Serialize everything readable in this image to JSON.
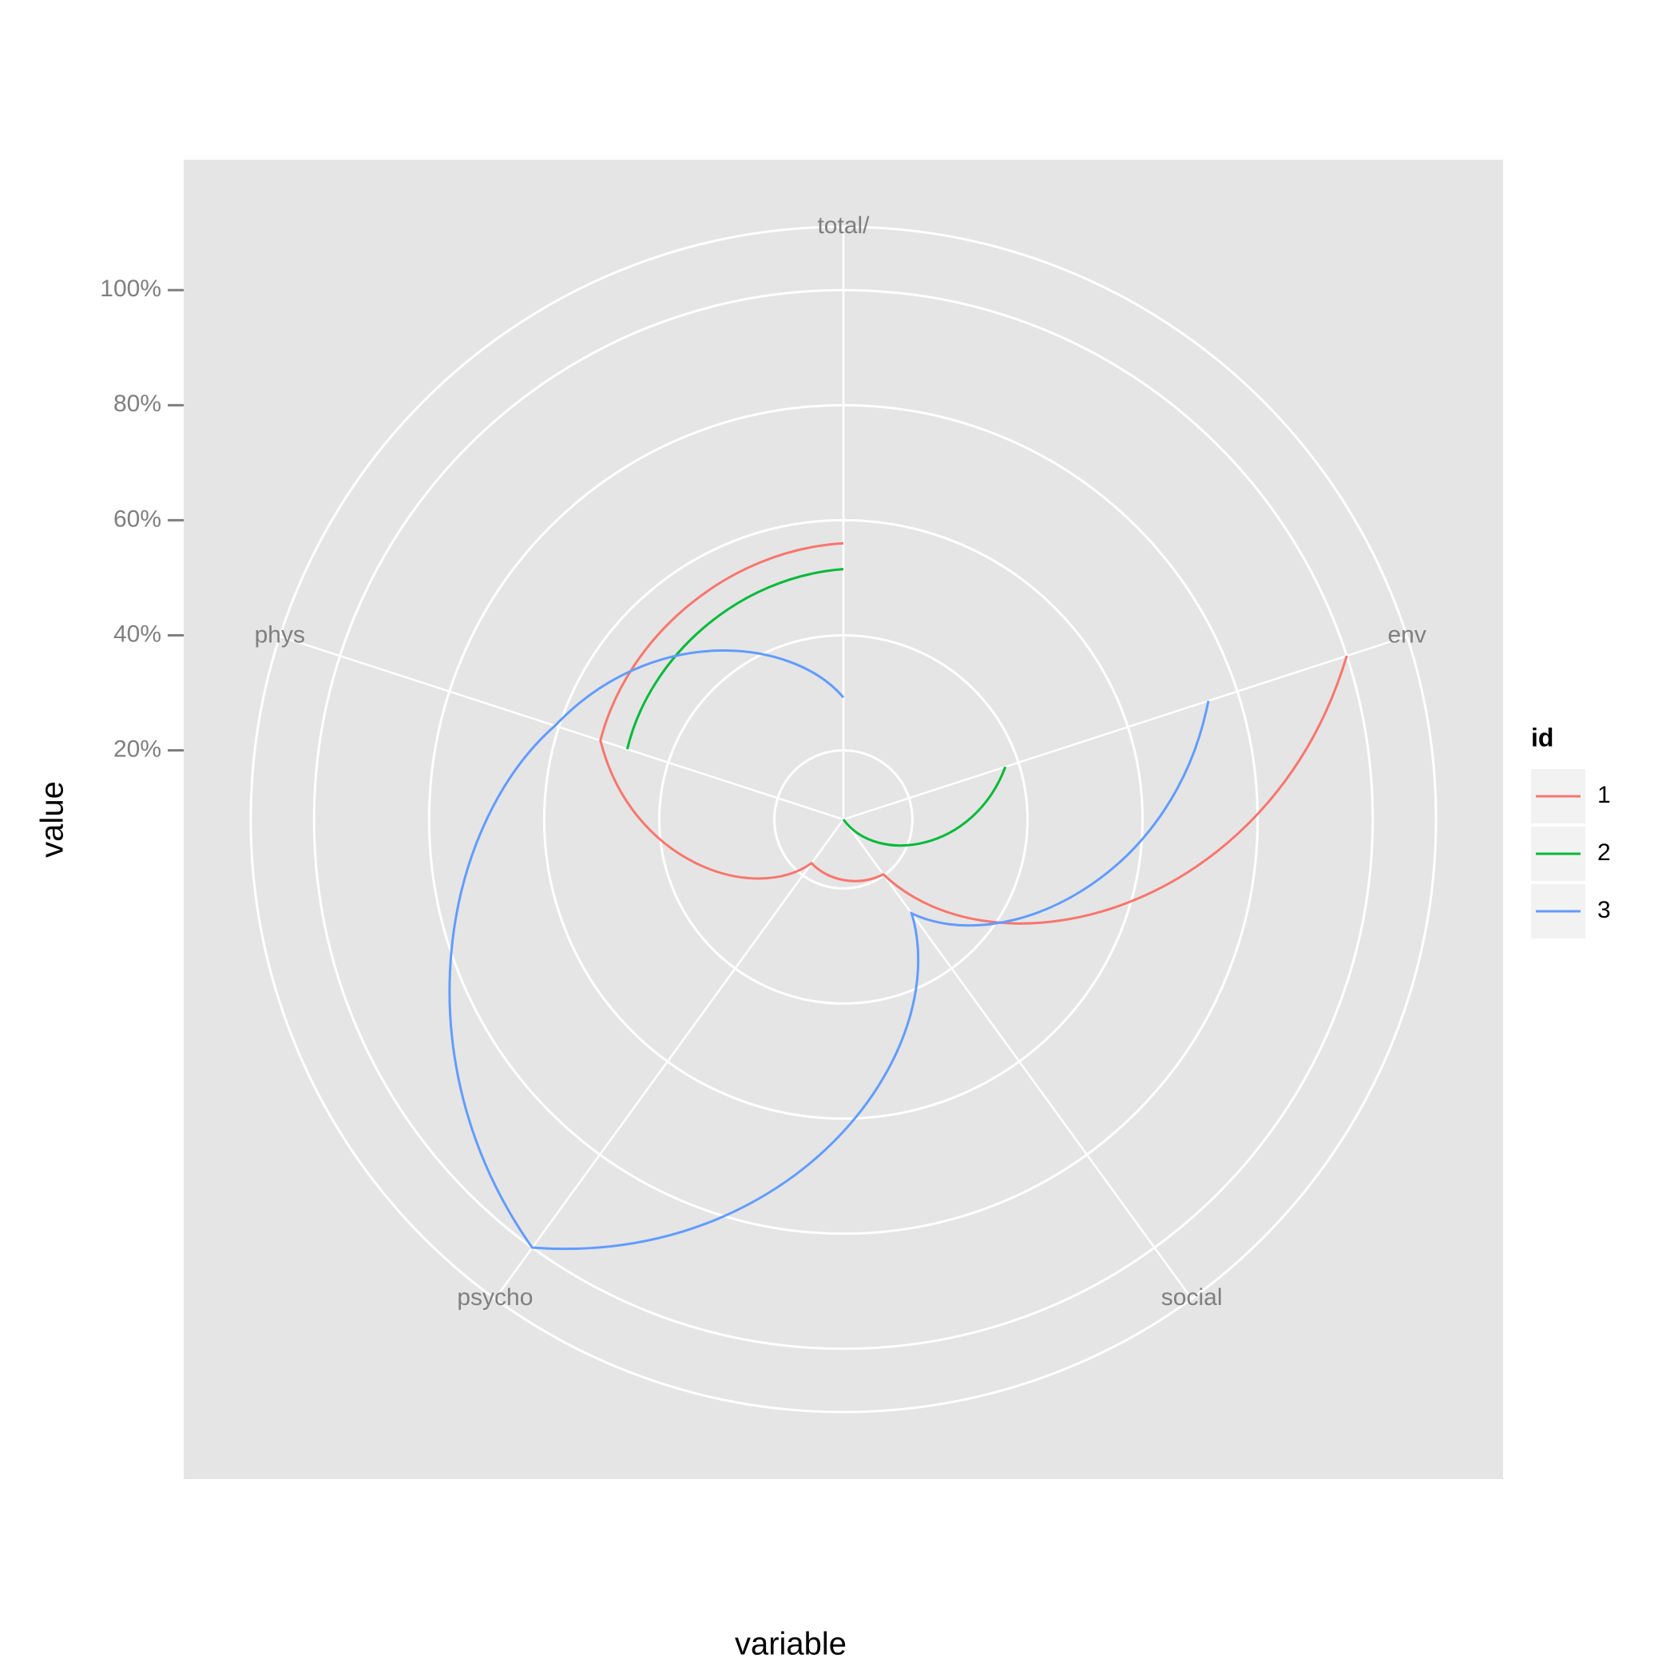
{
  "chart_data": {
    "type": "polar-line",
    "x_label": "variable",
    "y_label": "value",
    "categories": [
      "env",
      "social",
      "psycho",
      "phys",
      "total/"
    ],
    "series": [
      {
        "name": "1",
        "color": "#F8766D",
        "values": [
          100,
          19.8,
          17.4,
          52.4,
          56
        ]
      },
      {
        "name": "2",
        "color": "#00BA38",
        "values": [
          37.6,
          8,
          null,
          47.5,
          51.5
        ]
      },
      {
        "name": "3",
        "color": "#619CFF",
        "values": [
          74.7,
          28.2,
          100,
          60.7,
          29.2
        ]
      }
    ],
    "ylim": [
      8,
      111
    ],
    "yticks": [
      {
        "value": 20,
        "label": "20%"
      },
      {
        "value": 40,
        "label": "40%"
      },
      {
        "value": 60,
        "label": "60%"
      },
      {
        "value": 80,
        "label": "80%"
      },
      {
        "value": 100,
        "label": "100%"
      }
    ],
    "grid": true,
    "legend_title": "id",
    "legend_position": "right"
  }
}
